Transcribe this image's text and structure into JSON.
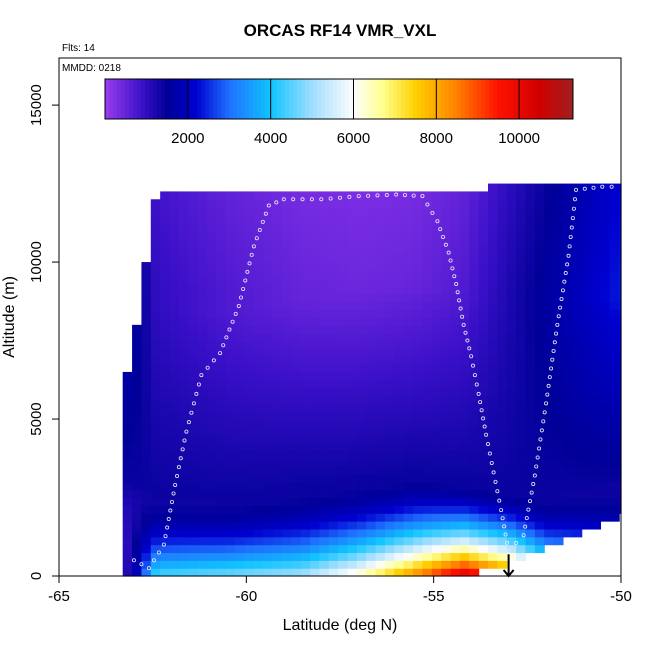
{
  "chart_data": {
    "type": "heatmap",
    "title": "ORCAS RF14 VMR_VXL",
    "flights_label": "Flts: 14",
    "date_label": "MMDD: 0218",
    "xlabel": "Latitude (deg N)",
    "ylabel": "Altitude (m)",
    "xlim": [
      -65,
      -50
    ],
    "ylim": [
      0,
      16500
    ],
    "x_ticks": [
      -65,
      -60,
      -55,
      -50
    ],
    "x_tick_labels": [
      "-65",
      "-60",
      "-55",
      "-50"
    ],
    "y_ticks": [
      0,
      5000,
      10000,
      15000
    ],
    "y_tick_labels": [
      "0",
      "5000",
      "10000",
      "15000"
    ],
    "colorbar": {
      "range": [
        0,
        11300
      ],
      "ticks": [
        2000,
        4000,
        6000,
        8000,
        10000
      ],
      "tick_labels": [
        "2000",
        "4000",
        "6000",
        "8000",
        "10000"
      ],
      "color_stops": [
        {
          "value": 0,
          "color": "#9a3cf0"
        },
        {
          "value": 900,
          "color": "#3a10c8"
        },
        {
          "value": 1500,
          "color": "#000098"
        },
        {
          "value": 2200,
          "color": "#0000d0"
        },
        {
          "value": 3000,
          "color": "#1f70ff"
        },
        {
          "value": 4000,
          "color": "#10c4ff"
        },
        {
          "value": 5000,
          "color": "#a0deff"
        },
        {
          "value": 6000,
          "color": "#fdfdfd"
        },
        {
          "value": 6700,
          "color": "#ffff90"
        },
        {
          "value": 7500,
          "color": "#ffd000"
        },
        {
          "value": 8500,
          "color": "#ff8000"
        },
        {
          "value": 9500,
          "color": "#ff1000"
        },
        {
          "value": 10500,
          "color": "#d00000"
        },
        {
          "value": 11300,
          "color": "#a02020"
        }
      ]
    },
    "profiles": [
      {
        "lat": -63.1,
        "bottom": 200,
        "top": 6500,
        "surface": 1200,
        "bl_top": 3000,
        "free": 1800
      },
      {
        "lat": -62.4,
        "bottom": 100,
        "top": 12200,
        "surface": 4500,
        "bl_top": 2600,
        "free": 1000
      },
      {
        "lat": -60.5,
        "bottom": 0,
        "top": 12200,
        "surface": 4800,
        "bl_top": 2500,
        "free": 700
      },
      {
        "lat": -58.5,
        "bottom": 0,
        "top": 12200,
        "surface": 5200,
        "bl_top": 2800,
        "free": 500
      },
      {
        "lat": -57.0,
        "bottom": 0,
        "top": 12200,
        "surface": 6500,
        "bl_top": 3000,
        "free": 450
      },
      {
        "lat": -55.5,
        "bottom": 0,
        "top": 12200,
        "surface": 8500,
        "bl_top": 3200,
        "free": 500
      },
      {
        "lat": -54.2,
        "bottom": 100,
        "top": 12200,
        "surface": 10600,
        "bl_top": 3000,
        "free": 700
      },
      {
        "lat": -53.0,
        "bottom": 500,
        "top": 12300,
        "surface": 9000,
        "bl_top": 2800,
        "free": 1200
      },
      {
        "lat": -52.0,
        "bottom": 1000,
        "top": 12300,
        "surface": 6000,
        "bl_top": 2600,
        "free": 1600
      },
      {
        "lat": -50.0,
        "bottom": 2000,
        "top": 12500,
        "surface": 4000,
        "bl_top": 3000,
        "free": 2400
      }
    ],
    "flight_track": [
      [
        -63.0,
        500
      ],
      [
        -62.6,
        250
      ],
      [
        -62.2,
        1000
      ],
      [
        -61.9,
        2900
      ],
      [
        -61.6,
        4600
      ],
      [
        -61.2,
        6400
      ],
      [
        -60.7,
        7100
      ],
      [
        -60.2,
        8600
      ],
      [
        -59.8,
        10500
      ],
      [
        -59.4,
        11800
      ],
      [
        -59.0,
        12000
      ],
      [
        -58.0,
        12000
      ],
      [
        -57.0,
        12100
      ],
      [
        -56.0,
        12150
      ],
      [
        -55.3,
        12100
      ],
      [
        -54.9,
        11300
      ],
      [
        -54.6,
        10300
      ],
      [
        -54.4,
        9300
      ],
      [
        -54.2,
        8000
      ],
      [
        -54.0,
        7000
      ],
      [
        -53.8,
        5800
      ],
      [
        -53.6,
        4500
      ],
      [
        -53.4,
        3300
      ],
      [
        -53.2,
        2100
      ],
      [
        -53.0,
        800
      ],
      [
        -52.6,
        1300
      ],
      [
        -52.3,
        3200
      ],
      [
        -52.0,
        5500
      ],
      [
        -51.7,
        8000
      ],
      [
        -51.4,
        10200
      ],
      [
        -51.2,
        12300
      ],
      [
        -50.5,
        12400
      ],
      [
        -50.0,
        12400
      ]
    ],
    "sounding_marker": {
      "lat": -53.0,
      "alt": 500
    }
  }
}
